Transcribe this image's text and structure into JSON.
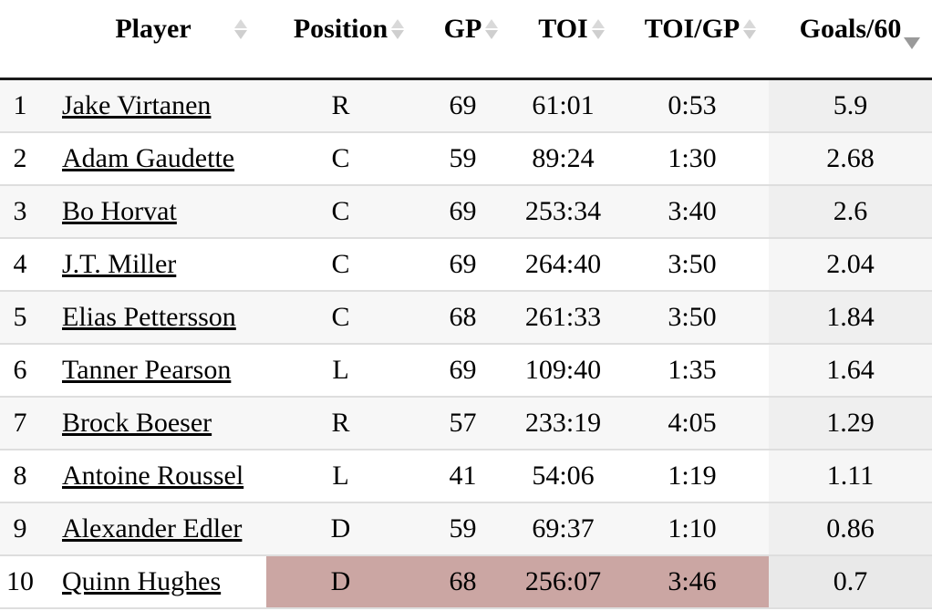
{
  "table": {
    "columns": [
      {
        "key": "rank",
        "label": "",
        "sortable": false,
        "sort": "none"
      },
      {
        "key": "player",
        "label": "Player",
        "sortable": true,
        "sort": "none"
      },
      {
        "key": "position",
        "label": "Position",
        "sortable": true,
        "sort": "none"
      },
      {
        "key": "gp",
        "label": "GP",
        "sortable": true,
        "sort": "none"
      },
      {
        "key": "toi",
        "label": "TOI",
        "sortable": true,
        "sort": "none"
      },
      {
        "key": "toi_gp",
        "label": "TOI/GP",
        "sortable": true,
        "sort": "none"
      },
      {
        "key": "goals60",
        "label": "Goals/60",
        "sortable": true,
        "sort": "desc"
      }
    ],
    "rows": [
      {
        "rank": "1",
        "player": "Jake Virtanen",
        "position": "R",
        "gp": "69",
        "toi": "61:01",
        "toi_gp": "0:53",
        "goals60": "5.9",
        "highlight": false
      },
      {
        "rank": "2",
        "player": "Adam Gaudette",
        "position": "C",
        "gp": "59",
        "toi": "89:24",
        "toi_gp": "1:30",
        "goals60": "2.68",
        "highlight": false
      },
      {
        "rank": "3",
        "player": "Bo Horvat",
        "position": "C",
        "gp": "69",
        "toi": "253:34",
        "toi_gp": "3:40",
        "goals60": "2.6",
        "highlight": false
      },
      {
        "rank": "4",
        "player": "J.T. Miller",
        "position": "C",
        "gp": "69",
        "toi": "264:40",
        "toi_gp": "3:50",
        "goals60": "2.04",
        "highlight": false
      },
      {
        "rank": "5",
        "player": "Elias Pettersson",
        "position": "C",
        "gp": "68",
        "toi": "261:33",
        "toi_gp": "3:50",
        "goals60": "1.84",
        "highlight": false
      },
      {
        "rank": "6",
        "player": "Tanner Pearson",
        "position": "L",
        "gp": "69",
        "toi": "109:40",
        "toi_gp": "1:35",
        "goals60": "1.64",
        "highlight": false
      },
      {
        "rank": "7",
        "player": "Brock Boeser",
        "position": "R",
        "gp": "57",
        "toi": "233:19",
        "toi_gp": "4:05",
        "goals60": "1.29",
        "highlight": false
      },
      {
        "rank": "8",
        "player": "Antoine Roussel",
        "position": "L",
        "gp": "41",
        "toi": "54:06",
        "toi_gp": "1:19",
        "goals60": "1.11",
        "highlight": false
      },
      {
        "rank": "9",
        "player": "Alexander Edler",
        "position": "D",
        "gp": "59",
        "toi": "69:37",
        "toi_gp": "1:10",
        "goals60": "0.86",
        "highlight": false
      },
      {
        "rank": "10",
        "player": "Quinn Hughes",
        "position": "D",
        "gp": "68",
        "toi": "256:07",
        "toi_gp": "3:46",
        "goals60": "0.7",
        "highlight": true
      }
    ]
  },
  "colors": {
    "header_border": "#1a1a1a",
    "row_alt_bg": "#f7f7f7",
    "row_border": "#dedede",
    "sorted_col_bg_odd": "#efefef",
    "sorted_col_bg_even": "#f6f6f6",
    "highlight_bg": "#cba6a3",
    "highlight_sorted_bg": "#e9e9e9",
    "sort_icon_inactive": "#d9d9d9",
    "sort_icon_inactive_dn": "#cfcfcf",
    "sort_icon_active": "#9a9a9a",
    "link_color": "#000000"
  }
}
